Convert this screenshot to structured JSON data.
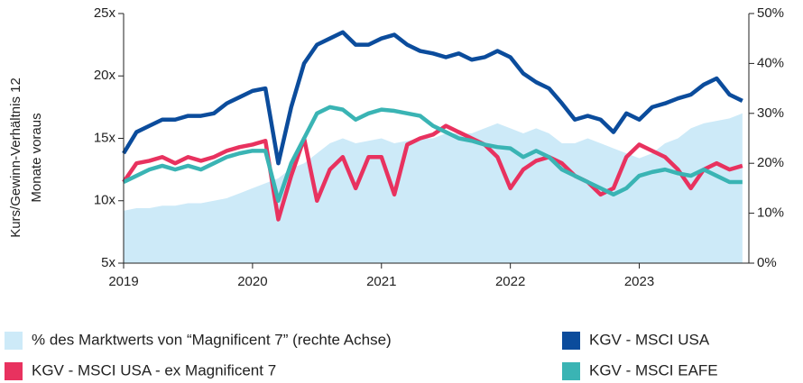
{
  "chart_data": {
    "type": "line",
    "ylabel": [
      "Kurs/Gewinn-Verhältnis 12",
      "Monate voraus"
    ],
    "x": [
      2019.0,
      2019.1,
      2019.2,
      2019.3,
      2019.4,
      2019.5,
      2019.6,
      2019.7,
      2019.8,
      2019.9,
      2020.0,
      2020.1,
      2020.2,
      2020.3,
      2020.4,
      2020.5,
      2020.6,
      2020.7,
      2020.8,
      2020.9,
      2021.0,
      2021.1,
      2021.2,
      2021.3,
      2021.4,
      2021.5,
      2021.6,
      2021.7,
      2021.8,
      2021.9,
      2022.0,
      2022.1,
      2022.2,
      2022.3,
      2022.4,
      2022.5,
      2022.6,
      2022.7,
      2022.8,
      2022.9,
      2023.0,
      2023.1,
      2023.2,
      2023.3,
      2023.4,
      2023.5,
      2023.6,
      2023.7,
      2023.8
    ],
    "xlim": [
      2019,
      2023.85
    ],
    "xticks": [
      2019,
      2020,
      2021,
      2022,
      2023
    ],
    "ylim": [
      5,
      25
    ],
    "yticks": [
      {
        "value": 5,
        "label": "5x"
      },
      {
        "value": 10,
        "label": "10x"
      },
      {
        "value": 15,
        "label": "15x"
      },
      {
        "value": 20,
        "label": "20x"
      },
      {
        "value": 25,
        "label": "25x"
      }
    ],
    "y2lim": [
      0,
      50
    ],
    "y2ticks": [
      {
        "value": 0,
        "label": "0%"
      },
      {
        "value": 10,
        "label": "10%"
      },
      {
        "value": 20,
        "label": "20%"
      },
      {
        "value": 30,
        "label": "30%"
      },
      {
        "value": 40,
        "label": "40%"
      },
      {
        "value": 50,
        "label": "50%"
      }
    ],
    "series": [
      {
        "name": "% des Marktwerts von “Magnificent 7” (rechte Achse)",
        "color": "#cdeaf8",
        "kind": "area",
        "axis": "y2",
        "values": [
          10.5,
          11,
          11,
          11.5,
          11.5,
          12,
          12,
          12.5,
          13,
          14,
          15,
          16,
          17,
          19,
          20,
          22,
          24,
          25,
          24,
          24.5,
          25,
          24,
          24.5,
          25,
          25,
          26,
          26,
          26,
          27,
          28,
          27,
          26,
          27,
          26,
          24,
          24,
          25,
          24,
          23,
          22,
          21,
          22,
          24,
          25,
          27,
          28,
          28.5,
          29,
          30
        ]
      },
      {
        "name": "KGV - MSCI USA",
        "color": "#0b4c9c",
        "kind": "line",
        "values": [
          13.8,
          15.5,
          16.0,
          16.5,
          16.5,
          16.8,
          16.8,
          17.0,
          17.8,
          18.3,
          18.8,
          19.0,
          13.0,
          17.5,
          21.0,
          22.5,
          23.0,
          23.5,
          22.5,
          22.5,
          23.0,
          23.3,
          22.5,
          22.0,
          21.8,
          21.5,
          21.8,
          21.3,
          21.5,
          22.0,
          21.5,
          20.2,
          19.5,
          19.0,
          17.8,
          16.5,
          16.8,
          16.5,
          15.5,
          17.0,
          16.5,
          17.5,
          17.8,
          18.2,
          18.5,
          19.3,
          19.8,
          18.5,
          18.0
        ]
      },
      {
        "name": "KGV - MSCI USA - ex Magnificent 7",
        "color": "#e8325f",
        "kind": "line",
        "values": [
          11.5,
          13.0,
          13.2,
          13.5,
          13.0,
          13.5,
          13.2,
          13.5,
          14.0,
          14.3,
          14.5,
          14.8,
          8.5,
          12.0,
          15.0,
          10.0,
          12.5,
          13.5,
          11.0,
          13.5,
          13.5,
          10.5,
          14.5,
          15.0,
          15.3,
          16.0,
          15.5,
          15.0,
          14.5,
          13.5,
          11.0,
          12.5,
          13.2,
          13.5,
          13.0,
          12.0,
          11.5,
          10.5,
          11.0,
          13.5,
          14.5,
          14.0,
          13.5,
          12.5,
          11.0,
          12.5,
          13.0,
          12.5,
          12.8
        ]
      },
      {
        "name": "KGV - MSCI EAFE",
        "color": "#3ab4b4",
        "kind": "line",
        "values": [
          11.5,
          12.0,
          12.5,
          12.8,
          12.5,
          12.8,
          12.5,
          13.0,
          13.5,
          13.8,
          14.0,
          14.0,
          10.0,
          13.0,
          15.0,
          17.0,
          17.5,
          17.3,
          16.5,
          17.0,
          17.3,
          17.2,
          17.0,
          16.8,
          16.0,
          15.5,
          15.0,
          14.8,
          14.5,
          14.3,
          14.2,
          13.5,
          14.0,
          13.5,
          12.5,
          12.0,
          11.5,
          11.0,
          10.5,
          11.0,
          12.0,
          12.3,
          12.5,
          12.2,
          12.0,
          12.5,
          12.0,
          11.5,
          11.5
        ]
      }
    ]
  }
}
